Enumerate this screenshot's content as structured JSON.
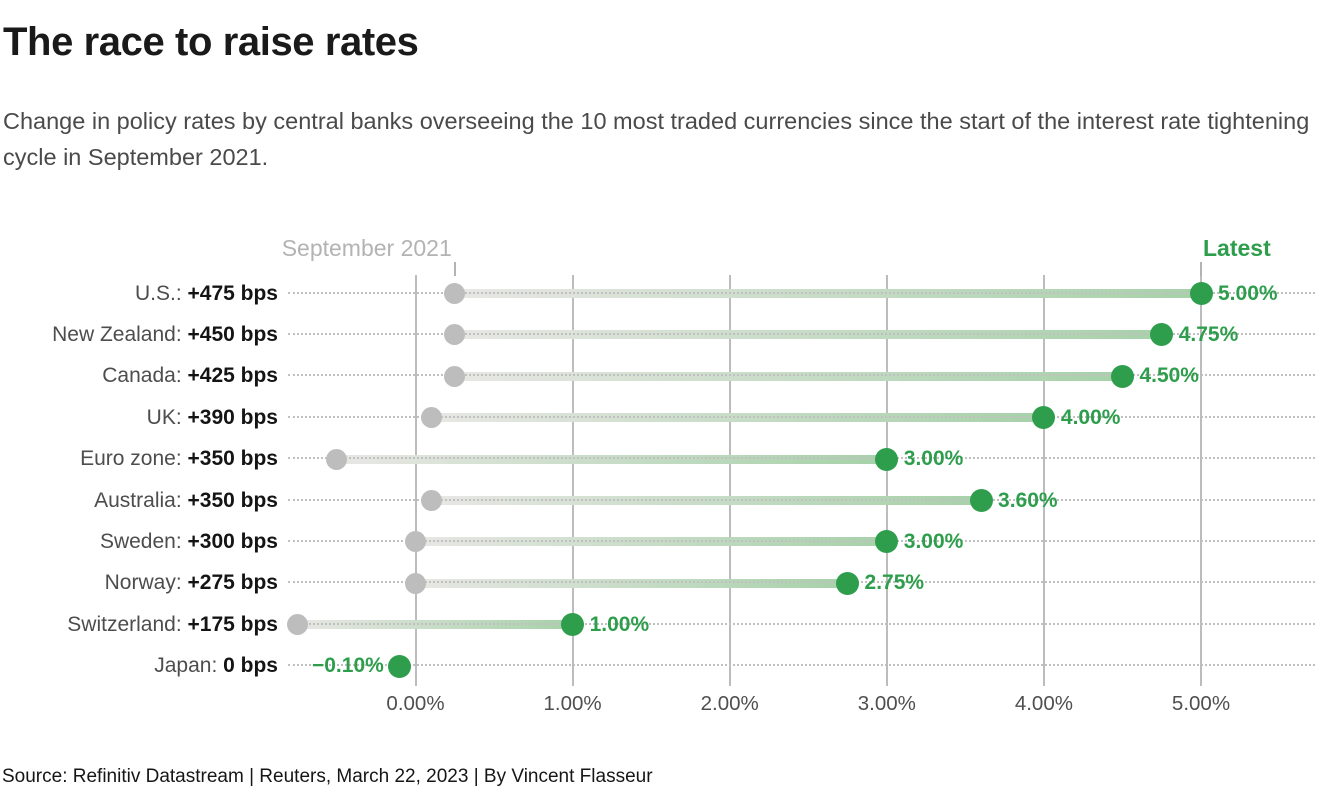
{
  "header": {
    "title": "The race to raise rates",
    "subtitle": "Change in policy rates by central banks overseeing the 10 most traded currencies since the start of the interest rate tightening cycle in September 2021."
  },
  "chart_data": {
    "type": "dumbbell",
    "unit": "percent policy rate",
    "start_label": "September 2021",
    "end_label": "Latest",
    "x_tick_labels": [
      "0.00%",
      "1.00%",
      "2.00%",
      "3.00%",
      "4.00%",
      "5.00%"
    ],
    "x_tick_values": [
      0,
      1,
      2,
      3,
      4,
      5
    ],
    "xlim": [
      -0.85,
      5.75
    ],
    "grid": "vertical-on",
    "rows": [
      {
        "country": "U.S.:",
        "change": "+475 bps",
        "start_pct": 0.25,
        "latest_pct": 5.0,
        "latest_label": "5.00%",
        "value_side": "right"
      },
      {
        "country": "New Zealand:",
        "change": "+450 bps",
        "start_pct": 0.25,
        "latest_pct": 4.75,
        "latest_label": "4.75%",
        "value_side": "right"
      },
      {
        "country": "Canada:",
        "change": "+425 bps",
        "start_pct": 0.25,
        "latest_pct": 4.5,
        "latest_label": "4.50%",
        "value_side": "right"
      },
      {
        "country": "UK:",
        "change": "+390 bps",
        "start_pct": 0.1,
        "latest_pct": 4.0,
        "latest_label": "4.00%",
        "value_side": "right"
      },
      {
        "country": "Euro zone:",
        "change": "+350 bps",
        "start_pct": -0.5,
        "latest_pct": 3.0,
        "latest_label": "3.00%",
        "value_side": "right"
      },
      {
        "country": "Australia:",
        "change": "+350 bps",
        "start_pct": 0.1,
        "latest_pct": 3.6,
        "latest_label": "3.60%",
        "value_side": "right"
      },
      {
        "country": "Sweden:",
        "change": "+300 bps",
        "start_pct": 0.0,
        "latest_pct": 3.0,
        "latest_label": "3.00%",
        "value_side": "right"
      },
      {
        "country": "Norway:",
        "change": "+275 bps",
        "start_pct": 0.0,
        "latest_pct": 2.75,
        "latest_label": "2.75%",
        "value_side": "right"
      },
      {
        "country": "Switzerland:",
        "change": "+175 bps",
        "start_pct": -0.75,
        "latest_pct": 1.0,
        "latest_label": "1.00%",
        "value_side": "right"
      },
      {
        "country": "Japan:",
        "change": "0 bps",
        "start_pct": -0.1,
        "latest_pct": -0.1,
        "latest_label": "−0.10%",
        "value_side": "left"
      }
    ],
    "colors": {
      "latest_green": "#2e9e4d",
      "bar_green_end": "#a6d1a9",
      "bar_gray_start": "#e8e7e4",
      "start_dot_gray": "#bdbdbd",
      "gridline_gray": "#bcbcbc",
      "start_label_gray": "#b3b3b3"
    }
  },
  "footer": {
    "source": "Source: Refinitiv Datastream | Reuters, March 22, 2023 | By Vincent Flasseur"
  }
}
